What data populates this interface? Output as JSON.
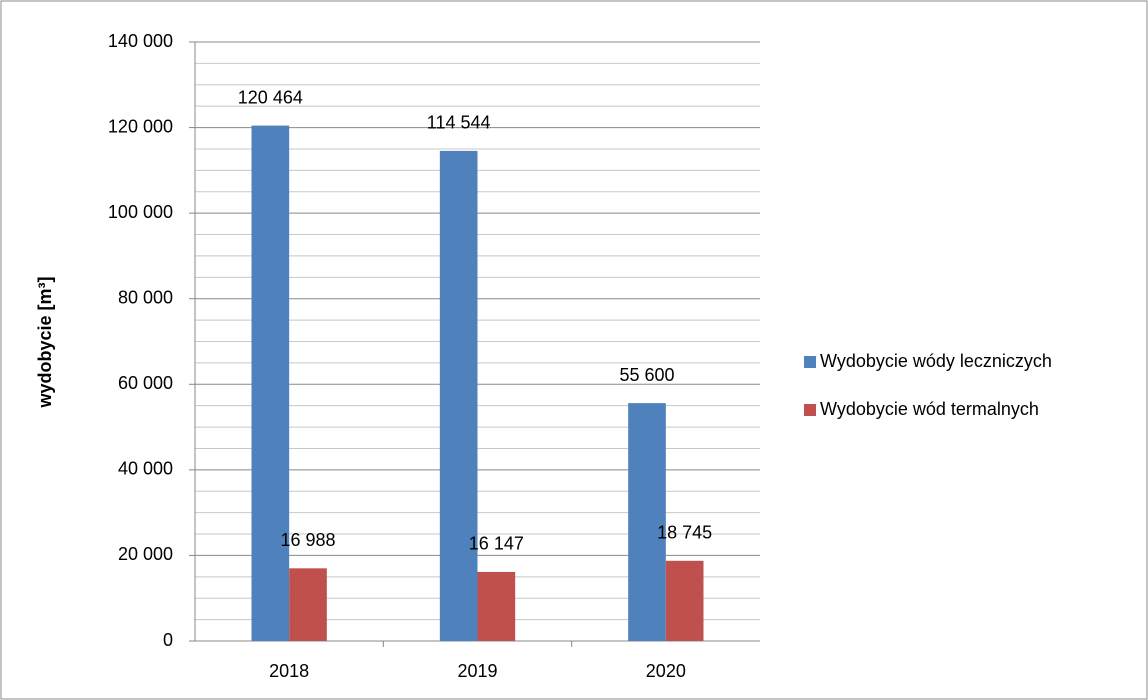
{
  "chart_data": {
    "type": "bar",
    "categories": [
      "2018",
      "2019",
      "2020"
    ],
    "y_label": "wydobycie [m³]",
    "series": [
      {
        "name": "Wydobycie wódy leczniczych",
        "color": "#4f81bd",
        "values": [
          120464,
          114544,
          55600
        ],
        "value_labels": [
          "120 464",
          "114 544",
          "55 600"
        ]
      },
      {
        "name": "Wydobycie wód termalnych",
        "color": "#c0504d",
        "values": [
          16988,
          16147,
          18745
        ],
        "value_labels": [
          "16 988",
          "16 147",
          "18 745"
        ]
      }
    ],
    "ylim": [
      0,
      140000
    ],
    "yticks": [
      {
        "value": 0,
        "label": "0"
      },
      {
        "value": 20000,
        "label": "20 000"
      },
      {
        "value": 40000,
        "label": "40 000"
      },
      {
        "value": 60000,
        "label": "60 000"
      },
      {
        "value": 80000,
        "label": "80 000"
      },
      {
        "value": 100000,
        "label": "100 000"
      },
      {
        "value": 120000,
        "label": "120 000"
      },
      {
        "value": 140000,
        "label": "140 000"
      }
    ],
    "grid": true,
    "legend": "right"
  }
}
